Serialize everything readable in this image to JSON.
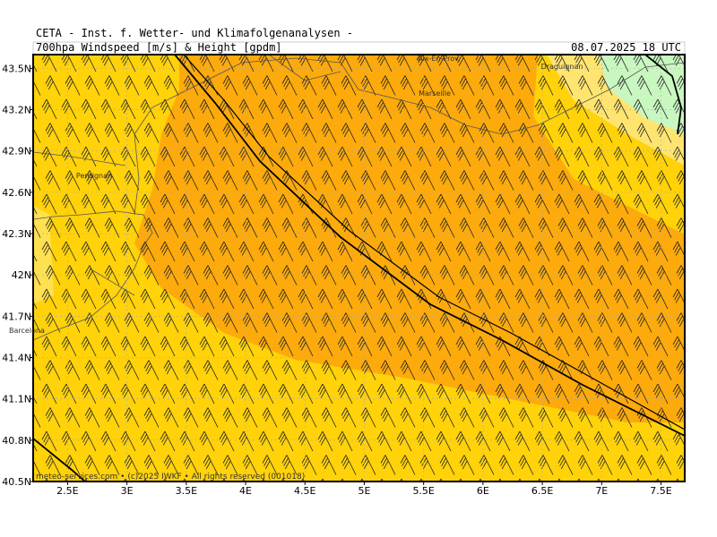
{
  "map": {
    "title": "CETA - Inst. f. Wetter- und Klimafolgenanalysen -",
    "subtitle": "700hpa Windspeed [m/s] & Height [gpdm]",
    "date": "08.07.2025 18 UTC",
    "footer": "meteo-services.com • (c)2025 IWKF • All rights reserved (001018)",
    "xlim": [
      2.21,
      7.7
    ],
    "ylim": [
      40.5,
      43.6
    ],
    "xticks": [
      {
        "value": 2.5,
        "label": "2.5E"
      },
      {
        "value": 3,
        "label": "3E"
      },
      {
        "value": 3.5,
        "label": "3.5E"
      },
      {
        "value": 4,
        "label": "4E"
      },
      {
        "value": 4.5,
        "label": "4.5E"
      },
      {
        "value": 5,
        "label": "5E"
      },
      {
        "value": 5.5,
        "label": "5.5E"
      },
      {
        "value": 6,
        "label": "6E"
      },
      {
        "value": 6.5,
        "label": "6.5E"
      },
      {
        "value": 7,
        "label": "7E"
      },
      {
        "value": 7.5,
        "label": "7.5E"
      }
    ],
    "yticks": [
      {
        "value": 43.5,
        "label": "43.5N"
      },
      {
        "value": 43.2,
        "label": "43.2N"
      },
      {
        "value": 42.9,
        "label": "42.9N"
      },
      {
        "value": 42.6,
        "label": "42.6N"
      },
      {
        "value": 42.3,
        "label": "42.3N"
      },
      {
        "value": 42,
        "label": "42N"
      },
      {
        "value": 41.7,
        "label": "41.7N"
      },
      {
        "value": 41.4,
        "label": "41.4N"
      },
      {
        "value": 41.1,
        "label": "41.1N"
      },
      {
        "value": 40.8,
        "label": "40.8N"
      },
      {
        "value": 40.5,
        "label": "40.5N"
      }
    ],
    "cities": [
      "Aix-En-Prov.",
      "Draguignan",
      "Marseille",
      "Perpignan",
      "Barcelona"
    ]
  }
}
